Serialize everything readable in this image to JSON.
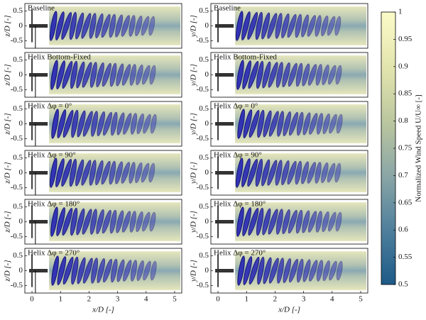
{
  "chart_data": [
    {
      "type": "field",
      "title": "Baseline",
      "ylabel": "z/D [-]",
      "xlim": [
        -0.25,
        5.25
      ],
      "ylim": [
        -0.75,
        0.75
      ],
      "yticks": [
        -0.5,
        0,
        0.5
      ]
    },
    {
      "type": "field",
      "title": "Baseline",
      "ylabel": "y/D [-]",
      "xlim": [
        -0.25,
        5.25
      ],
      "ylim": [
        -0.75,
        0.75
      ],
      "yticks": [
        -0.5,
        0,
        0.5
      ]
    },
    {
      "type": "field",
      "title": "Helix Bottom-Fixed",
      "ylabel": "z/D [-]",
      "xlim": [
        -0.25,
        5.25
      ],
      "ylim": [
        -0.75,
        0.75
      ],
      "yticks": [
        -0.5,
        0,
        0.5
      ]
    },
    {
      "type": "field",
      "title": "Helix Bottom-Fixed",
      "ylabel": "y/D [-]",
      "xlim": [
        -0.25,
        5.25
      ],
      "ylim": [
        -0.75,
        0.75
      ],
      "yticks": [
        -0.5,
        0,
        0.5
      ]
    },
    {
      "type": "field",
      "title": "Helix Δφ = 0°",
      "ylabel": "z/D [-]",
      "xlim": [
        -0.25,
        5.25
      ],
      "ylim": [
        -0.75,
        0.75
      ],
      "yticks": [
        -0.5,
        0,
        0.5
      ]
    },
    {
      "type": "field",
      "title": "Helix Δφ = 0°",
      "ylabel": "y/D [-]",
      "xlim": [
        -0.25,
        5.25
      ],
      "ylim": [
        -0.75,
        0.75
      ],
      "yticks": [
        -0.5,
        0,
        0.5
      ]
    },
    {
      "type": "field",
      "title": "Helix Δφ = 90°",
      "ylabel": "z/D [-]",
      "xlim": [
        -0.25,
        5.25
      ],
      "ylim": [
        -0.75,
        0.75
      ],
      "yticks": [
        -0.5,
        0,
        0.5
      ]
    },
    {
      "type": "field",
      "title": "Helix Δφ = 90°",
      "ylabel": "y/D [-]",
      "xlim": [
        -0.25,
        5.25
      ],
      "ylim": [
        -0.75,
        0.75
      ],
      "yticks": [
        -0.5,
        0,
        0.5
      ]
    },
    {
      "type": "field",
      "title": "Helix Δφ = 180°",
      "ylabel": "z/D [-]",
      "xlim": [
        -0.25,
        5.25
      ],
      "ylim": [
        -0.75,
        0.75
      ],
      "yticks": [
        -0.5,
        0,
        0.5
      ]
    },
    {
      "type": "field",
      "title": "Helix Δφ = 180°",
      "ylabel": "y/D [-]",
      "xlim": [
        -0.25,
        5.25
      ],
      "ylim": [
        -0.75,
        0.75
      ],
      "yticks": [
        -0.5,
        0,
        0.5
      ]
    },
    {
      "type": "field",
      "title": "Helix Δφ = 270°",
      "ylabel": "z/D [-]",
      "xlabel": "x/D [-]",
      "xlim": [
        -0.25,
        5.25
      ],
      "ylim": [
        -0.75,
        0.75
      ],
      "yticks": [
        -0.5,
        0,
        0.5
      ],
      "xticks": [
        0,
        1,
        2,
        3,
        4,
        5
      ]
    },
    {
      "type": "field",
      "title": "Helix Δφ = 270°",
      "ylabel": "y/D [-]",
      "xlabel": "x/D [-]",
      "xlim": [
        -0.25,
        5.25
      ],
      "ylim": [
        -0.75,
        0.75
      ],
      "yticks": [
        -0.5,
        0,
        0.5
      ],
      "xticks": [
        0,
        1,
        2,
        3,
        4,
        5
      ]
    },
    {
      "type": "colorbar",
      "label": "Normalized Wind Speed U/U∞ [-]",
      "ylim": [
        0.5,
        1
      ],
      "yticks": [
        0.5,
        0.55,
        0.6,
        0.65,
        0.7,
        0.75,
        0.8,
        0.85,
        0.9,
        0.95,
        1
      ],
      "colors": [
        "#1c5a87",
        "#4f7f9c",
        "#8aa6a6",
        "#bcc79f",
        "#e3e5ae",
        "#fbfbc8"
      ]
    }
  ]
}
